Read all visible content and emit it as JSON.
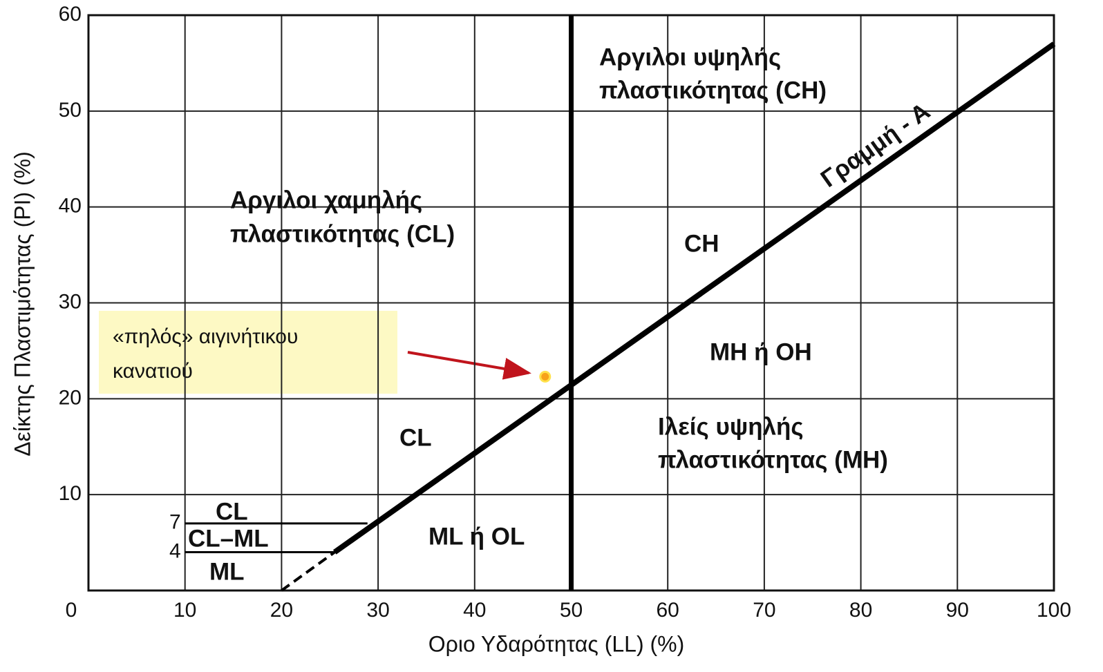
{
  "chart_data": {
    "type": "scatter",
    "x_label": "Οριο Υδαρότητας (LL)  (%)",
    "y_label": "Δείκτης Πλαστιμότητας (PI)  (%)",
    "xlim": [
      0,
      100
    ],
    "ylim": [
      0,
      60
    ],
    "xticks": [
      0,
      10,
      20,
      30,
      40,
      50,
      60,
      70,
      80,
      90,
      100
    ],
    "yticks": [
      10,
      20,
      30,
      40,
      50,
      60
    ],
    "minor_yticks": [
      4,
      7
    ],
    "grid": true,
    "series": [
      {
        "color": "#f7a21b",
        "x": [
          47.3
        ],
        "values": [
          22.3
        ]
      }
    ],
    "lines": [
      {
        "name": "Γραμμή - Α",
        "x": [
          25.5,
          100
        ],
        "values": [
          4,
          57
        ]
      },
      {
        "x": [
          20,
          25.5
        ],
        "values": [
          0,
          4
        ],
        "dash": true
      },
      {
        "x": [
          50,
          50
        ],
        "values": [
          0,
          60
        ]
      },
      {
        "x": [
          10,
          28.9
        ],
        "values": [
          7,
          7
        ]
      },
      {
        "x": [
          10,
          25.5
        ],
        "values": [
          4,
          4
        ]
      }
    ],
    "annotations": [
      "Αργιλοι υψηλής",
      "πλαστικότητας (CH)",
      "Αργιλοι χαμηλής",
      "πλαστικότητας (CL)",
      "CH",
      "ΜΗ  ή  ΟΗ",
      "Ιλείς υψηλής",
      "πλαστικότητας (MH)",
      "CL",
      "ML  ή  OL",
      "CL",
      "CL–ML",
      "ML"
    ],
    "callout": [
      "«πηλός» αιγινήτικου",
      "κανατιού"
    ]
  }
}
